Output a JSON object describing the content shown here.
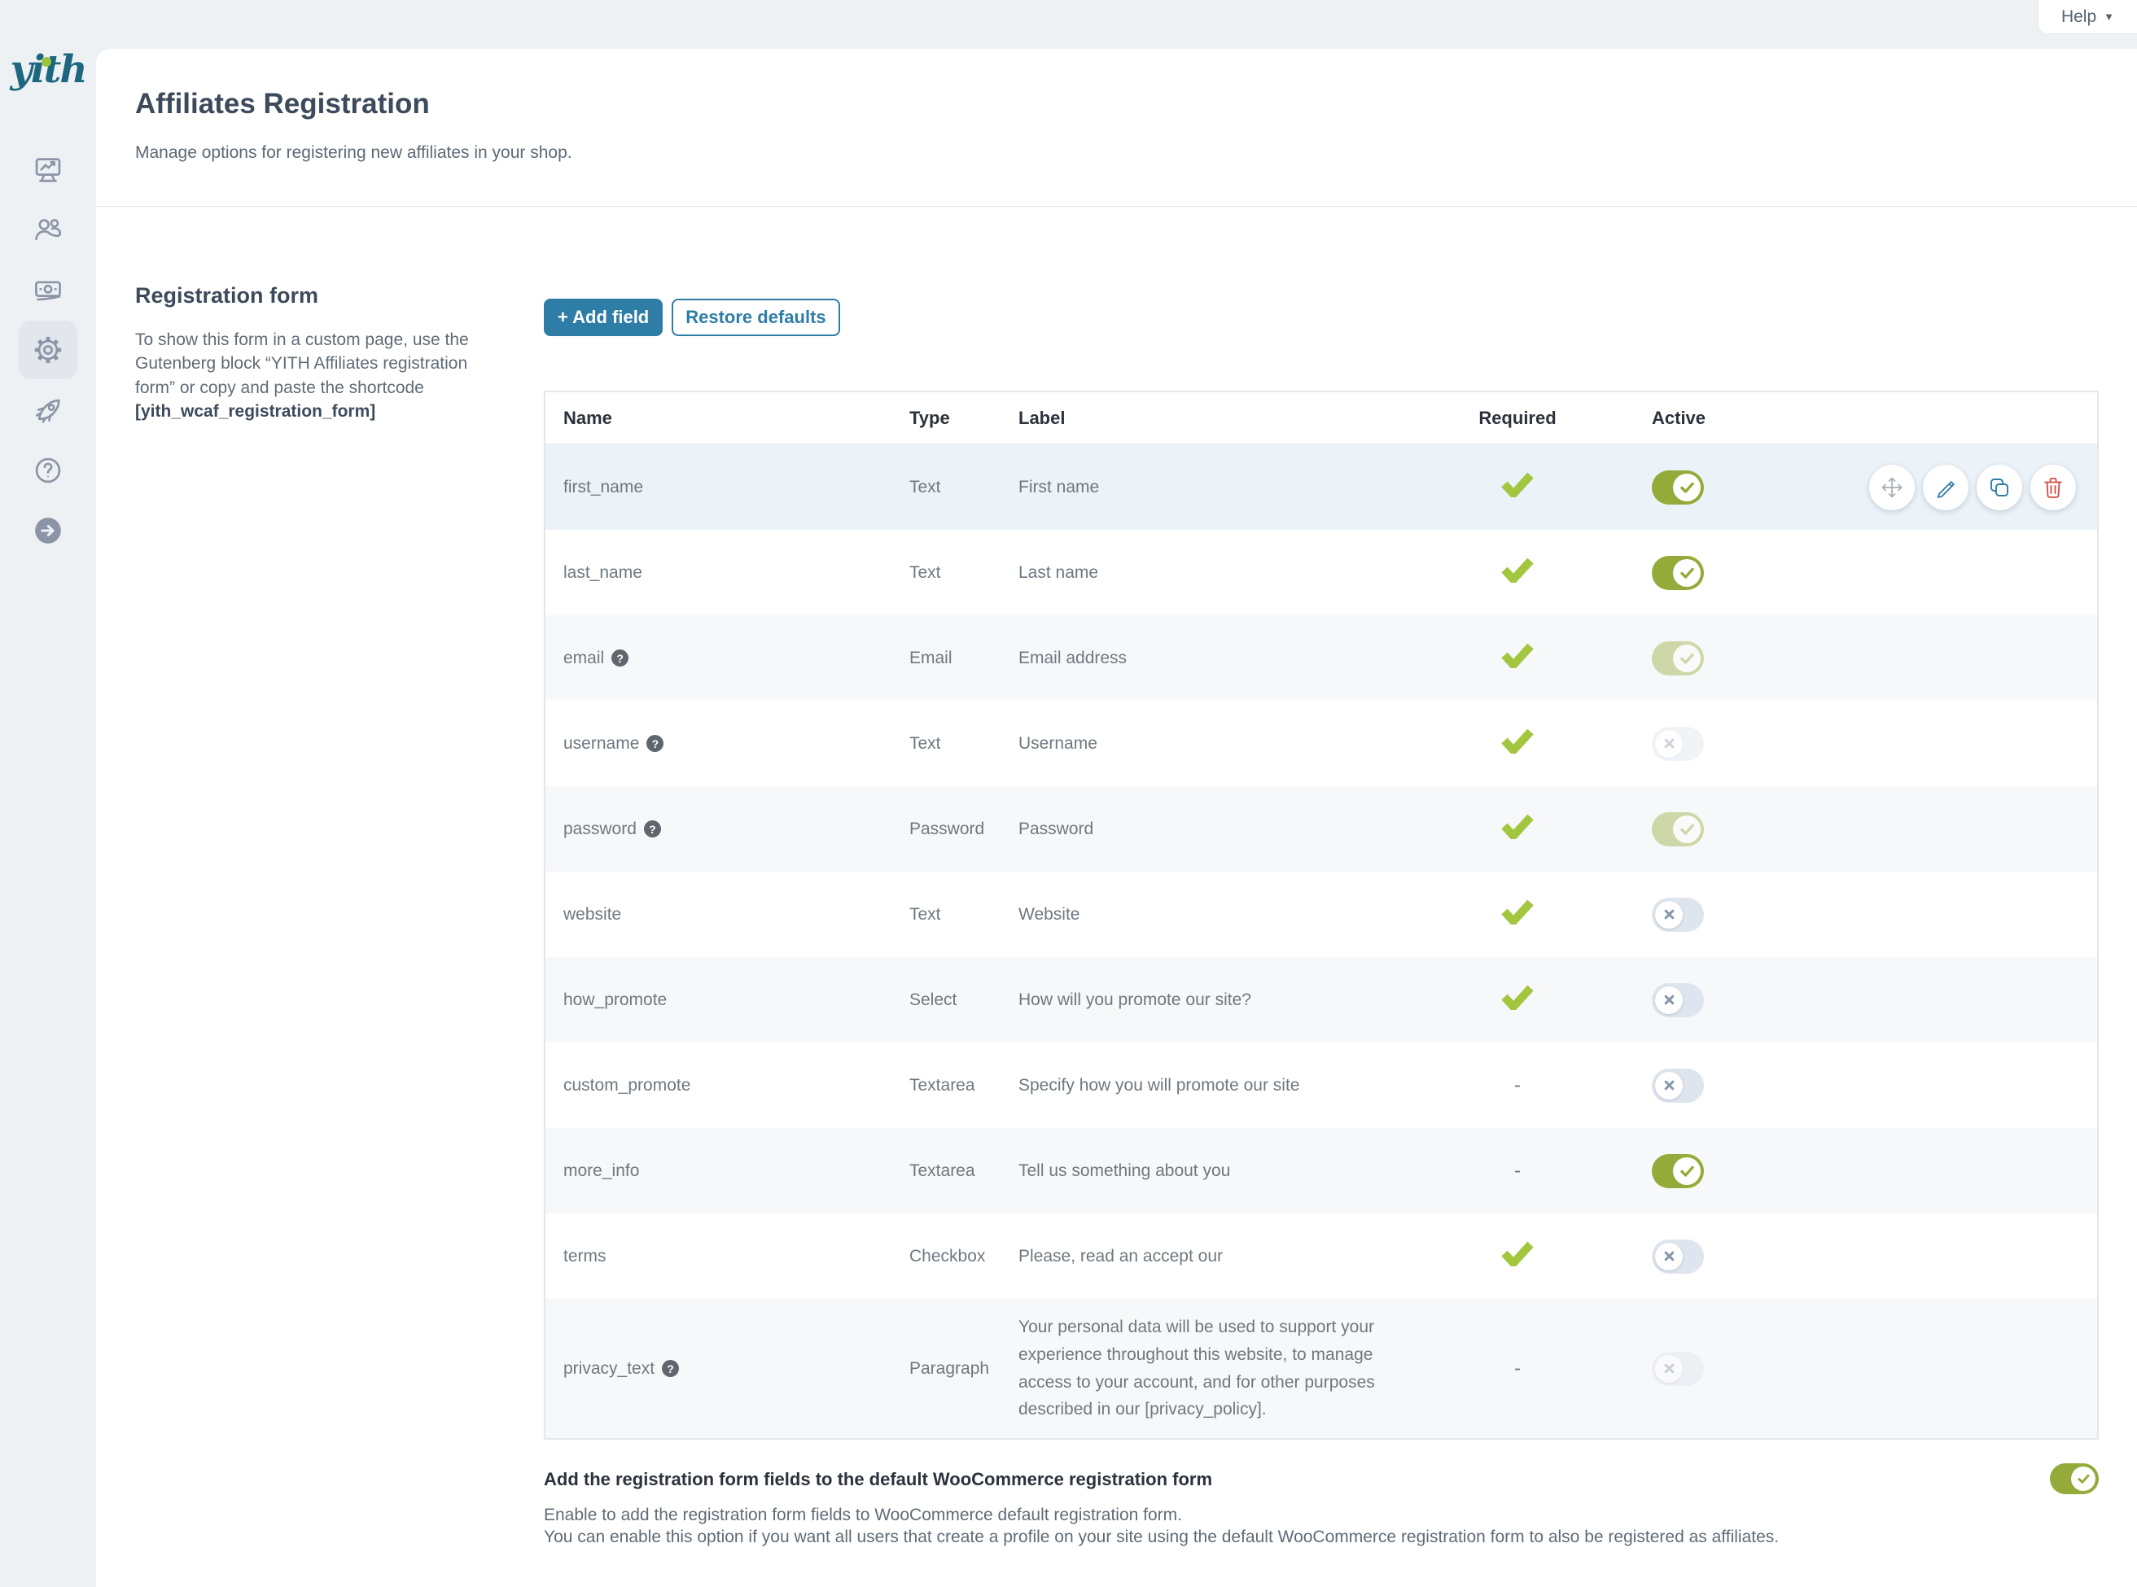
{
  "topbar": {
    "help_label": "Help"
  },
  "logo_text": "yith",
  "sidebar": {
    "icons": [
      "dashboard-icon",
      "affiliates-users-icon",
      "payments-icon",
      "settings-gear-icon",
      "premium-rocket-icon",
      "help-icon",
      "collapse-arrow-icon"
    ],
    "active_icon": "settings-gear-icon"
  },
  "header": {
    "title": "Affiliates Registration",
    "subtitle": "Manage options for registering new affiliates in your shop."
  },
  "section": {
    "title": "Registration form",
    "description": "To show this form in a custom page, use the Gutenberg block “YITH Affiliates registration form” or copy and paste the shortcode",
    "shortcode": "[yith_wcaf_registration_form]"
  },
  "toolbar": {
    "add_field": "+ Add field",
    "restore_defaults": "Restore defaults"
  },
  "table": {
    "columns": [
      "Name",
      "Type",
      "Label",
      "Required",
      "Active"
    ],
    "row_actions": [
      "move",
      "edit",
      "duplicate",
      "delete"
    ],
    "rows": [
      {
        "name": "first_name",
        "help": false,
        "type": "Text",
        "label": "First name",
        "required": true,
        "active": "on",
        "hovered": true
      },
      {
        "name": "last_name",
        "help": false,
        "type": "Text",
        "label": "Last name",
        "required": true,
        "active": "on"
      },
      {
        "name": "email",
        "help": true,
        "type": "Email",
        "label": "Email address",
        "required": true,
        "active": "on-disabled"
      },
      {
        "name": "username",
        "help": true,
        "type": "Text",
        "label": "Username",
        "required": true,
        "active": "off-disabled"
      },
      {
        "name": "password",
        "help": true,
        "type": "Password",
        "label": "Password",
        "required": true,
        "active": "on-disabled"
      },
      {
        "name": "website",
        "help": false,
        "type": "Text",
        "label": "Website",
        "required": true,
        "active": "off"
      },
      {
        "name": "how_promote",
        "help": false,
        "type": "Select",
        "label": "How will you promote our site?",
        "required": true,
        "active": "off"
      },
      {
        "name": "custom_promote",
        "help": false,
        "type": "Textarea",
        "label": "Specify how you will promote our site",
        "required": false,
        "active": "off"
      },
      {
        "name": "more_info",
        "help": false,
        "type": "Textarea",
        "label": "Tell us something about you",
        "required": false,
        "active": "on"
      },
      {
        "name": "terms",
        "help": false,
        "type": "Checkbox",
        "label": "Please, read an accept our",
        "required": true,
        "active": "off"
      },
      {
        "name": "privacy_text",
        "help": true,
        "type": "Paragraph",
        "label": "Your personal data will be used to support your experience throughout this website, to manage access to your account, and for other purposes described in our [privacy_policy].",
        "required": false,
        "active": "off-disabled",
        "tall": true
      }
    ]
  },
  "footer_option": {
    "title": "Add the registration form fields to the default WooCommerce registration form",
    "line1": "Enable to add the registration form fields to WooCommerce default registration form.",
    "line2": "You can enable this option if you want all users that create a profile on your site using the default WooCommerce registration form to also be registered as affiliates.",
    "active": "on"
  },
  "colors": {
    "accent_blue": "#2e7da6",
    "toggle_on_green": "#94ab3a",
    "required_check_green": "#a2c63e",
    "danger_red": "#d04b45",
    "page_background": "#eef1f4"
  }
}
